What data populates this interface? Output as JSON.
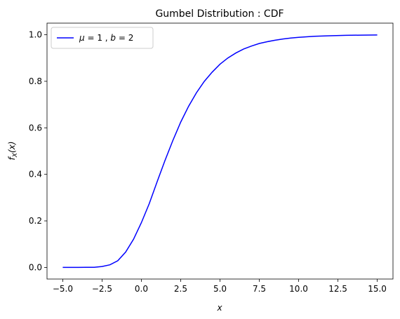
{
  "chart_data": {
    "type": "line",
    "title": "Gumbel Distribution : CDF",
    "xlabel": "x",
    "ylabel": "f_X(x)",
    "ylabel_main": "f",
    "ylabel_sub": "X",
    "ylabel_rest": "(x)",
    "xlim": [
      -6,
      16
    ],
    "ylim": [
      -0.05,
      1.05
    ],
    "xticks": [
      -5.0,
      -2.5,
      0.0,
      2.5,
      5.0,
      7.5,
      10.0,
      12.5,
      15.0
    ],
    "xtick_labels": [
      "−5.0",
      "−2.5",
      "0.0",
      "2.5",
      "5.0",
      "7.5",
      "10.0",
      "12.5",
      "15.0"
    ],
    "yticks": [
      0.0,
      0.2,
      0.4,
      0.6,
      0.8,
      1.0
    ],
    "ytick_labels": [
      "0.0",
      "0.2",
      "0.4",
      "0.6",
      "0.8",
      "1.0"
    ],
    "grid": false,
    "legend_position": "top-left",
    "series": [
      {
        "name": "μ = 1 , b = 2",
        "legend_parts": [
          "μ",
          " = 1 , ",
          "b",
          " = 2"
        ],
        "color": "#0000ff",
        "x": [
          -5,
          -4.5,
          -4,
          -3.5,
          -3,
          -2.5,
          -2,
          -1.5,
          -1,
          -0.5,
          0,
          0.5,
          1,
          1.5,
          2,
          2.5,
          3,
          3.5,
          4,
          4.5,
          5,
          5.5,
          6,
          6.5,
          7,
          7.5,
          8,
          8.5,
          9,
          9.5,
          10,
          11,
          12,
          13,
          14,
          15
        ],
        "y": [
          0.0,
          0.0,
          0.0,
          0.0003,
          0.0006,
          0.0038,
          0.0112,
          0.0287,
          0.066,
          0.121,
          0.1922,
          0.2739,
          0.3679,
          0.4594,
          0.5452,
          0.6243,
          0.6922,
          0.7506,
          0.7996,
          0.8393,
          0.8734,
          0.9002,
          0.9213,
          0.9388,
          0.9514,
          0.9626,
          0.9702,
          0.9765,
          0.9818,
          0.9858,
          0.9889,
          0.9933,
          0.9959,
          0.9975,
          0.9985,
          0.9991
        ]
      }
    ]
  }
}
